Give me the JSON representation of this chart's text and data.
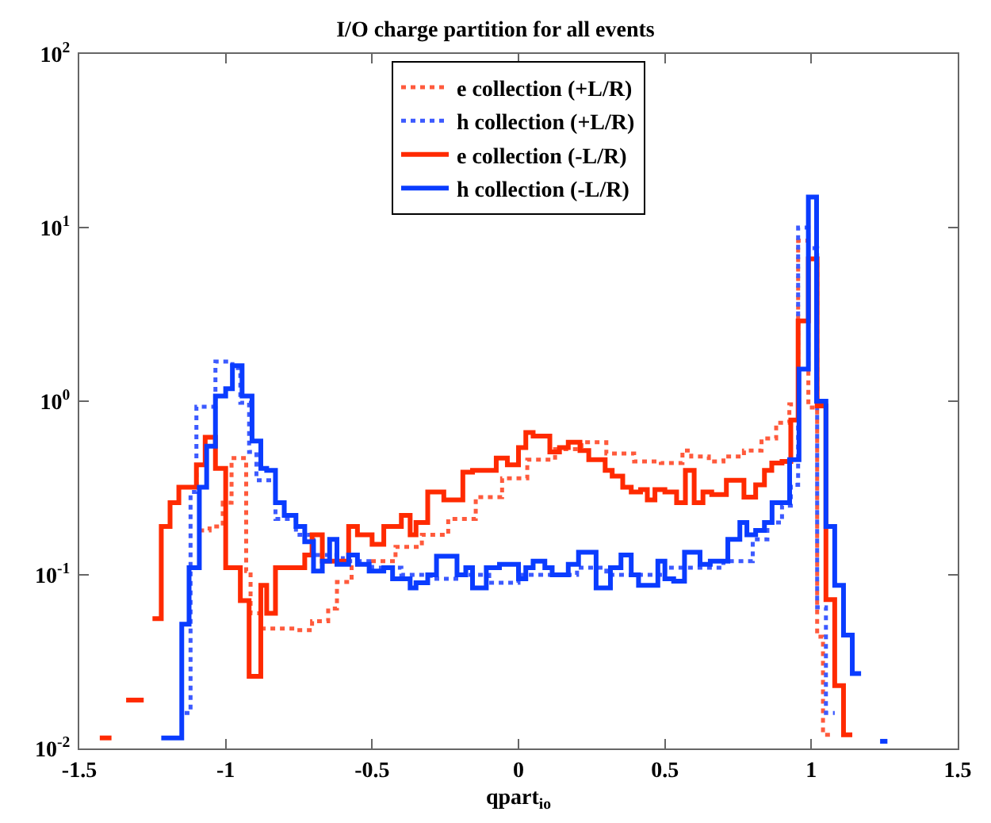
{
  "chart_data": {
    "type": "step",
    "title": "I/O charge partition for all events",
    "xlabel": "qpart$_{io}$",
    "xlim": [
      -1.5,
      1.5
    ],
    "xticks": [
      -1.5,
      -1,
      -0.5,
      0,
      0.5,
      1,
      1.5
    ],
    "ylim": [
      0.01,
      100
    ],
    "yticks": [
      {
        "value": 0.01,
        "label": "10$^{-2}$"
      },
      {
        "value": 0.1,
        "label": "10$^{-1}$"
      },
      {
        "value": 1,
        "label": "10$^{0}$"
      },
      {
        "value": 10,
        "label": "10$^{1}$"
      },
      {
        "value": 100,
        "label": "10$^{2}$"
      }
    ],
    "log": "y",
    "grid": false,
    "legend": "top",
    "series": [
      {
        "name": "e collection (+L/R)",
        "color": "#ff5a3c",
        "line_style": "dotted",
        "x": [
          -1.09,
          -1.055,
          -1.01,
          -0.98,
          -0.93,
          -0.915,
          -0.88,
          -0.76,
          -0.705,
          -0.65,
          -0.62,
          -0.57,
          -0.51,
          -0.42,
          -0.33,
          -0.24,
          -0.146,
          -0.056,
          0.03,
          0.125,
          0.215,
          0.3,
          0.395,
          0.486,
          0.56,
          0.59,
          0.65,
          0.7,
          0.77,
          0.83,
          0.88,
          0.925,
          0.955,
          0.99,
          1.02,
          1.04,
          1.07
        ],
        "values": [
          0.18,
          0.19,
          0.26,
          0.47,
          0.105,
          0.06,
          0.049,
          0.048,
          0.054,
          0.064,
          0.091,
          0.115,
          0.12,
          0.145,
          0.17,
          0.21,
          0.28,
          0.36,
          0.46,
          0.53,
          0.58,
          0.5,
          0.45,
          0.44,
          0.52,
          0.48,
          0.45,
          0.48,
          0.52,
          0.61,
          0.75,
          0.96,
          8.4,
          0.92,
          0.044,
          0.012,
          0.012
        ]
      },
      {
        "name": "h collection (+L/R)",
        "color": "#3c5aff",
        "line_style": "dotted",
        "x": [
          -1.14,
          -1.12,
          -1.1,
          -1.035,
          -0.977,
          -0.95,
          -0.92,
          -0.895,
          -0.83,
          -0.76,
          -0.7,
          -0.6,
          -0.5,
          -0.4,
          -0.3,
          -0.2,
          -0.1,
          0,
          0.1,
          0.2,
          0.3,
          0.4,
          0.5,
          0.6,
          0.7,
          0.8,
          0.85,
          0.9,
          0.93,
          0.955,
          0.99,
          1.02,
          1.05,
          1.08
        ],
        "values": [
          0.016,
          0.3,
          0.93,
          1.69,
          1.55,
          0.98,
          0.51,
          0.35,
          0.21,
          0.17,
          0.13,
          0.12,
          0.11,
          0.1,
          0.095,
          0.1,
          0.09,
          0.1,
          0.1,
          0.11,
          0.1,
          0.1,
          0.11,
          0.11,
          0.12,
          0.16,
          0.2,
          0.25,
          0.33,
          10,
          7.6,
          0.065,
          0.016,
          0.016
        ]
      },
      {
        "name": "e collection (-L/R)",
        "color": "#ff2a00",
        "line_style": "solid",
        "x": [
          -1.43,
          -1.39,
          -1.34,
          -1.28,
          -1.25,
          -1.22,
          -1.19,
          -1.16,
          -1.1,
          -1.07,
          -1.035,
          -1,
          -0.95,
          -0.92,
          -0.88,
          -0.86,
          -0.83,
          -0.73,
          -0.705,
          -0.67,
          -0.58,
          -0.55,
          -0.5,
          -0.46,
          -0.4,
          -0.37,
          -0.35,
          -0.31,
          -0.255,
          -0.19,
          -0.157,
          -0.076,
          -0.038,
          0,
          0.025,
          0.05,
          0.107,
          0.14,
          0.17,
          0.21,
          0.24,
          0.296,
          0.32,
          0.356,
          0.385,
          0.417,
          0.44,
          0.466,
          0.5,
          0.54,
          0.57,
          0.6,
          0.63,
          0.66,
          0.71,
          0.77,
          0.81,
          0.84,
          0.865,
          0.9,
          0.93,
          0.955,
          0.99,
          1.02,
          1.05,
          1.08,
          1.11,
          1.14
        ],
        "values": [
          0.0115,
          null,
          0.019,
          null,
          0.056,
          0.19,
          0.26,
          0.32,
          0.43,
          0.62,
          0.41,
          0.11,
          0.071,
          0.026,
          0.087,
          0.06,
          0.11,
          0.13,
          0.17,
          0.12,
          0.19,
          0.17,
          0.15,
          0.19,
          0.22,
          0.17,
          0.2,
          0.3,
          0.27,
          0.39,
          0.4,
          0.47,
          0.43,
          0.54,
          0.66,
          0.63,
          0.51,
          0.54,
          0.58,
          0.52,
          0.46,
          0.4,
          0.37,
          0.32,
          0.3,
          0.31,
          0.27,
          0.31,
          0.3,
          0.26,
          0.4,
          0.26,
          0.3,
          0.29,
          0.35,
          0.28,
          0.33,
          0.4,
          0.44,
          0.45,
          0.78,
          2.9,
          6.6,
          0.94,
          0.072,
          0.023,
          0.012,
          0.012
        ]
      },
      {
        "name": "h collection (-L/R)",
        "color": "#0a3cff",
        "line_style": "solid",
        "x": [
          -1.22,
          -1.15,
          -1.125,
          -1.09,
          -1.065,
          -1.035,
          -1,
          -0.977,
          -0.944,
          -0.91,
          -0.88,
          -0.86,
          -0.83,
          -0.8,
          -0.76,
          -0.73,
          -0.7,
          -0.67,
          -0.645,
          -0.62,
          -0.58,
          -0.55,
          -0.51,
          -0.46,
          -0.43,
          -0.37,
          -0.35,
          -0.31,
          -0.28,
          -0.21,
          -0.18,
          -0.157,
          -0.11,
          -0.065,
          0,
          0.025,
          0.05,
          0.09,
          0.115,
          0.17,
          0.205,
          0.265,
          0.314,
          0.35,
          0.385,
          0.41,
          0.476,
          0.5,
          0.53,
          0.567,
          0.62,
          0.655,
          0.715,
          0.756,
          0.78,
          0.81,
          0.84,
          0.866,
          0.926,
          0.958,
          0.99,
          1.018,
          1.05,
          1.08,
          1.11,
          1.14,
          1.17,
          1.235,
          1.26
        ],
        "values": [
          0.0115,
          0.052,
          0.11,
          0.32,
          0.55,
          1.07,
          1.18,
          1.6,
          1.07,
          0.59,
          0.41,
          0.4,
          0.26,
          0.22,
          0.19,
          0.155,
          0.105,
          0.12,
          0.16,
          0.115,
          0.13,
          0.115,
          0.105,
          0.11,
          0.095,
          0.084,
          0.09,
          0.1,
          0.128,
          0.1,
          0.11,
          0.084,
          0.11,
          0.115,
          0.095,
          0.11,
          0.12,
          0.11,
          0.1,
          0.115,
          0.135,
          0.084,
          0.11,
          0.13,
          0.1,
          0.087,
          0.12,
          0.095,
          0.092,
          0.135,
          0.115,
          0.12,
          0.16,
          0.2,
          0.17,
          0.18,
          0.2,
          0.26,
          0.46,
          1.53,
          15,
          1,
          0.19,
          0.087,
          0.045,
          0.027,
          null,
          0.011,
          0.011
        ]
      }
    ]
  }
}
